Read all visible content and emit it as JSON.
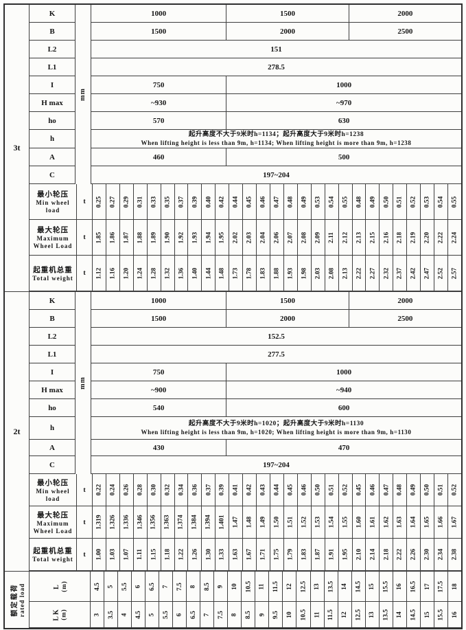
{
  "s3t": {
    "side_label": "3t",
    "unit": "mm",
    "rows": {
      "k": {
        "label": "K",
        "c1": "1000",
        "c2": "1500",
        "c3": "2000"
      },
      "b": {
        "label": "B",
        "c1": "1500",
        "c2": "2000",
        "c3": "2500"
      },
      "l2": {
        "label": "L2",
        "value": "151"
      },
      "l1": {
        "label": "L1",
        "value": "278.5"
      },
      "i": {
        "label": "I",
        "c1": "750",
        "c2": "1000"
      },
      "hmax": {
        "label": "H max",
        "c1": "~930",
        "c2": "~970"
      },
      "ho": {
        "label": "ho",
        "c1": "570",
        "c2": "630"
      },
      "h": {
        "label": "h",
        "cn": "起升高度不大于9米时h=1134；起升高度大于9米时h=1238",
        "en": "When lifting height is less than 9m, h=1134; When lifting height is more than 9m, h=1238"
      },
      "a": {
        "label": "A",
        "c1": "460",
        "c2": "500"
      },
      "c": {
        "label": "C",
        "value": "197~204"
      }
    },
    "load_rows": [
      {
        "cn": "最小轮压",
        "en": "Min wheel load",
        "unit": "t",
        "values": [
          "0.25",
          "0.27",
          "0.29",
          "0.31",
          "0.33",
          "0.35",
          "0.37",
          "0.39",
          "0.40",
          "0.42",
          "0.44",
          "0.45",
          "0.46",
          "0.47",
          "0.48",
          "0.49",
          "0.53",
          "0.54",
          "0.55",
          "0.48",
          "0.49",
          "0.50",
          "0.51",
          "0.52",
          "0.53",
          "0.54",
          "0.55"
        ]
      },
      {
        "cn": "最大轮压",
        "en": "Maximum Wheel Load",
        "unit": "t",
        "values": [
          "1.85",
          "1.86",
          "1.87",
          "1.88",
          "1.89",
          "1.90",
          "1.92",
          "1.93",
          "1.94",
          "1.95",
          "2.02",
          "2.03",
          "2.04",
          "2.06",
          "2.07",
          "2.08",
          "2.09",
          "2.11",
          "2.12",
          "2.13",
          "2.15",
          "2.16",
          "2.18",
          "2.19",
          "2.20",
          "2.22",
          "2.24"
        ]
      },
      {
        "cn": "起重机总重",
        "en": "Total weight",
        "unit": "t",
        "values": [
          "1.12",
          "1.16",
          "1.20",
          "1.24",
          "1.28",
          "1.32",
          "1.36",
          "1.40",
          "1.44",
          "1.48",
          "1.73",
          "1.78",
          "1.83",
          "1.88",
          "1.93",
          "1.98",
          "2.03",
          "2.08",
          "2.13",
          "2.22",
          "2.27",
          "2.32",
          "2.37",
          "2.42",
          "2.47",
          "2.52",
          "2.57"
        ]
      }
    ]
  },
  "s2t": {
    "side_label": "2t",
    "unit": "mm",
    "rows": {
      "k": {
        "label": "K",
        "c1": "1000",
        "c2": "1500",
        "c3": "2000"
      },
      "b": {
        "label": "B",
        "c1": "1500",
        "c2": "2000",
        "c3": "2500"
      },
      "l2": {
        "label": "L2",
        "value": "152.5"
      },
      "l1": {
        "label": "L1",
        "value": "277.5"
      },
      "i": {
        "label": "I",
        "c1": "750",
        "c2": "1000"
      },
      "hmax": {
        "label": "H max",
        "c1": "~900",
        "c2": "~940"
      },
      "ho": {
        "label": "ho",
        "c1": "540",
        "c2": "600"
      },
      "h": {
        "label": "h",
        "cn": "起升高度不大于9米时h=1020；起升高度大于9米时h=1130",
        "en": "When lifting height is less than 9m, h=1020; When lifting height is more than 9m, h=1130"
      },
      "a": {
        "label": "A",
        "c1": "430",
        "c2": "470"
      },
      "c": {
        "label": "C",
        "value": "197~204"
      }
    },
    "load_rows": [
      {
        "cn": "最小轮压",
        "en": "Min wheel load",
        "unit": "t",
        "values": [
          "0.22",
          "0.24",
          "0.26",
          "0.28",
          "0.30",
          "0.32",
          "0.34",
          "0.36",
          "0.37",
          "0.39",
          "0.41",
          "0.42",
          "0.43",
          "0.44",
          "0.45",
          "0.46",
          "0.50",
          "0.51",
          "0.52",
          "0.45",
          "0.46",
          "0.47",
          "0.48",
          "0.49",
          "0.50",
          "0.51",
          "0.52"
        ]
      },
      {
        "cn": "最大轮压",
        "en": "Maximum Wheel Load",
        "unit": "t",
        "values": [
          "1.319",
          "1.326",
          "1.336",
          "1.346",
          "1.356",
          "1.363",
          "1.374",
          "1.384",
          "1.394",
          "1.401",
          "1.47",
          "1.48",
          "1.49",
          "1.50",
          "1.51",
          "1.52",
          "1.53",
          "1.54",
          "1.55",
          "1.60",
          "1.61",
          "1.62",
          "1.63",
          "1.64",
          "1.65",
          "1.66",
          "1.67"
        ]
      },
      {
        "cn": "起重机总重",
        "en": "Total weight",
        "unit": "t",
        "values": [
          "1.00",
          "1.03",
          "1.07",
          "1.11",
          "1.15",
          "1.18",
          "1.22",
          "1.26",
          "1.30",
          "1.33",
          "1.63",
          "1.67",
          "1.71",
          "1.75",
          "1.79",
          "1.83",
          "1.87",
          "1.91",
          "1.95",
          "2.10",
          "2.14",
          "2.18",
          "2.22",
          "2.26",
          "2.30",
          "2.34",
          "2.38"
        ]
      }
    ]
  },
  "bottom": {
    "side_cn": "额定载荷",
    "side_en": "rated load",
    "rows": [
      {
        "label": "L",
        "unit": "(m)",
        "values": [
          "4.5",
          "5",
          "5.5",
          "6",
          "6.5",
          "7",
          "7.5",
          "8",
          "8.5",
          "9",
          "10",
          "10.5",
          "11",
          "11.5",
          "12",
          "12.5",
          "13",
          "13.5",
          "14",
          "14.5",
          "15",
          "15.5",
          "16",
          "16.5",
          "17",
          "17.5",
          "18"
        ]
      },
      {
        "label": "LK",
        "unit": "(m)",
        "values": [
          "3",
          "3.5",
          "4",
          "4.5",
          "5",
          "5.5",
          "6",
          "6.5",
          "7",
          "7.5",
          "8",
          "8.5",
          "9",
          "9.5",
          "10",
          "10.5",
          "11",
          "11.5",
          "12",
          "12.5",
          "13",
          "13.5",
          "14",
          "14.5",
          "15",
          "15.5",
          "16"
        ]
      }
    ]
  }
}
